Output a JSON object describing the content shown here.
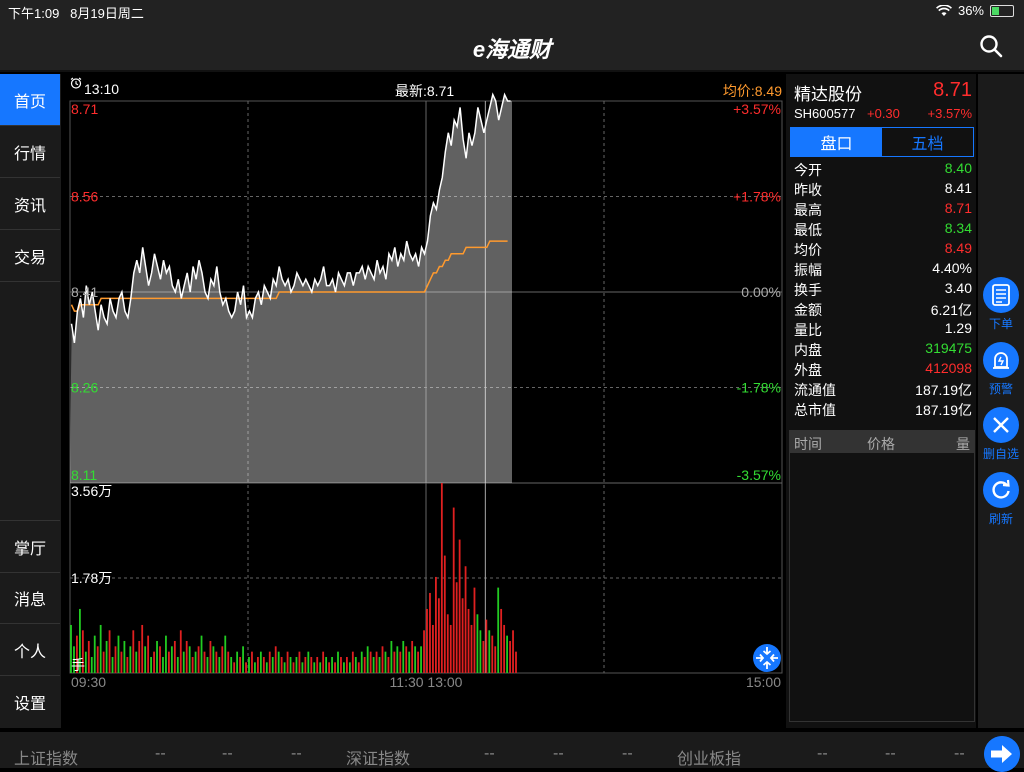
{
  "status": {
    "time": "下午1:09",
    "date": "8月19日周二",
    "battery": "36%",
    "battery_level": 0.36
  },
  "nav": {
    "logo": "e海通财",
    "search_icon": "search-icon"
  },
  "sidebar": {
    "top_items": [
      {
        "label": "首页",
        "active": true
      },
      {
        "label": "行情",
        "active": false
      },
      {
        "label": "资讯",
        "active": false
      },
      {
        "label": "交易",
        "active": false
      }
    ],
    "bottom_items": [
      {
        "label": "掌厅"
      },
      {
        "label": "消息"
      },
      {
        "label": "个人"
      },
      {
        "label": "设置"
      }
    ]
  },
  "chart_header": {
    "time": "13:10",
    "latest": "最新:8.71",
    "avg": "均价:8.49"
  },
  "chart_data": {
    "type": "line",
    "price_axis": {
      "left": [
        "8.71",
        "8.56",
        "8.41",
        "8.26",
        "8.11"
      ],
      "right": [
        "+3.57%",
        "+1.78%",
        "0.00%",
        "-1.78%",
        "-3.57%"
      ],
      "ylim": [
        8.11,
        8.71
      ]
    },
    "volume_axis": {
      "labels": [
        "3.56万",
        "1.78万",
        "手"
      ],
      "ylim": [
        0,
        35600
      ]
    },
    "x_labels": [
      "09:30",
      "11:30 13:00",
      "15:00"
    ],
    "total_minutes": 240,
    "price": [
      8.36,
      8.33,
      8.38,
      8.4,
      8.37,
      8.42,
      8.39,
      8.41,
      8.38,
      8.35,
      8.39,
      8.37,
      8.36,
      8.4,
      8.38,
      8.37,
      8.4,
      8.41,
      8.38,
      8.37,
      8.4,
      8.44,
      8.46,
      8.44,
      8.48,
      8.45,
      8.42,
      8.44,
      8.47,
      8.45,
      8.43,
      8.46,
      8.44,
      8.45,
      8.42,
      8.41,
      8.43,
      8.4,
      8.42,
      8.44,
      8.41,
      8.45,
      8.43,
      8.46,
      8.44,
      8.41,
      8.4,
      8.43,
      8.42,
      8.45,
      8.41,
      8.39,
      8.4,
      8.38,
      8.37,
      8.38,
      8.41,
      8.39,
      8.42,
      8.37,
      8.38,
      8.37,
      8.4,
      8.41,
      8.39,
      8.42,
      8.41,
      8.4,
      8.43,
      8.42,
      8.45,
      8.43,
      8.42,
      8.43,
      8.41,
      8.42,
      8.44,
      8.43,
      8.42,
      8.43,
      8.42,
      8.41,
      8.43,
      8.42,
      8.43,
      8.45,
      8.42,
      8.42,
      8.43,
      8.41,
      8.44,
      8.43,
      8.42,
      8.44,
      8.44,
      8.42,
      8.44,
      8.44,
      8.45,
      8.43,
      8.45,
      8.44,
      8.43,
      8.46,
      8.44,
      8.45,
      8.43,
      8.47,
      8.46,
      8.48,
      8.45,
      8.47,
      8.46,
      8.49,
      8.47,
      8.46,
      8.47,
      8.45,
      8.48,
      8.47,
      8.49,
      8.53,
      8.55,
      8.54,
      8.57,
      8.59,
      8.63,
      8.66,
      8.64,
      8.68,
      8.67,
      8.7,
      8.65,
      8.62,
      8.66,
      8.64,
      8.66,
      8.7,
      8.68,
      8.66,
      8.68,
      8.7,
      8.72,
      8.71,
      8.68,
      8.7,
      8.72,
      8.71,
      8.71
    ],
    "avg": [
      8.39,
      8.38,
      8.38,
      8.39,
      8.39,
      8.39,
      8.39,
      8.39,
      8.39,
      8.39,
      8.4,
      8.4,
      8.4,
      8.4,
      8.4,
      8.4,
      8.4,
      8.4,
      8.4,
      8.4,
      8.4,
      8.4,
      8.4,
      8.4,
      8.4,
      8.4,
      8.4,
      8.4,
      8.4,
      8.4,
      8.4,
      8.4,
      8.4,
      8.4,
      8.4,
      8.4,
      8.4,
      8.4,
      8.4,
      8.4,
      8.4,
      8.4,
      8.4,
      8.4,
      8.4,
      8.4,
      8.4,
      8.4,
      8.4,
      8.4,
      8.4,
      8.4,
      8.4,
      8.4,
      8.4,
      8.4,
      8.4,
      8.4,
      8.4,
      8.4,
      8.4,
      8.4,
      8.4,
      8.4,
      8.4,
      8.4,
      8.4,
      8.4,
      8.4,
      8.4,
      8.41,
      8.41,
      8.41,
      8.41,
      8.41,
      8.41,
      8.41,
      8.41,
      8.41,
      8.41,
      8.41,
      8.41,
      8.41,
      8.41,
      8.41,
      8.41,
      8.41,
      8.41,
      8.41,
      8.41,
      8.41,
      8.41,
      8.41,
      8.41,
      8.41,
      8.41,
      8.41,
      8.41,
      8.41,
      8.41,
      8.41,
      8.41,
      8.41,
      8.41,
      8.41,
      8.41,
      8.41,
      8.41,
      8.41,
      8.41,
      8.41,
      8.41,
      8.41,
      8.41,
      8.41,
      8.41,
      8.41,
      8.41,
      8.41,
      8.41,
      8.42,
      8.43,
      8.44,
      8.44,
      8.45,
      8.45,
      8.46,
      8.46,
      8.47,
      8.47,
      8.47,
      8.47,
      8.47,
      8.48,
      8.48,
      8.48,
      8.48,
      8.48,
      8.48,
      8.48,
      8.48,
      8.49,
      8.49,
      8.49,
      8.49,
      8.49,
      8.49,
      8.49
    ],
    "volume": [
      9000,
      5000,
      7000,
      12000,
      8000,
      4000,
      6000,
      3000,
      7000,
      5000,
      9000,
      4000,
      6000,
      8000,
      3000,
      5000,
      7000,
      4000,
      6000,
      3000,
      5000,
      8000,
      4000,
      6000,
      9000,
      5000,
      7000,
      3000,
      4000,
      6000,
      5000,
      3000,
      7000,
      4000,
      5000,
      6000,
      3000,
      8000,
      4000,
      6000,
      5000,
      3000,
      4000,
      5000,
      7000,
      4000,
      3000,
      6000,
      5000,
      4000,
      3000,
      5000,
      7000,
      4000,
      3000,
      2000,
      4000,
      3000,
      5000,
      2000,
      3000,
      4000,
      2000,
      3000,
      4000,
      3000,
      2000,
      4000,
      3000,
      5000,
      4000,
      3000,
      2000,
      4000,
      3000,
      2000,
      3000,
      4000,
      2000,
      3000,
      4000,
      3000,
      2000,
      3000,
      2000,
      4000,
      3000,
      2000,
      3000,
      2000,
      4000,
      3000,
      2000,
      3000,
      2000,
      4000,
      3000,
      2000,
      4000,
      3000,
      5000,
      4000,
      3000,
      4000,
      3000,
      5000,
      4000,
      3000,
      6000,
      4000,
      5000,
      4000,
      6000,
      5000,
      4000,
      6000,
      5000,
      4000,
      5000,
      8000,
      12000,
      15000,
      9000,
      18000,
      14000,
      35600,
      22000,
      11000,
      9000,
      31000,
      17000,
      25000,
      14000,
      20000,
      12000,
      9000,
      16000,
      11000,
      8000,
      6000,
      10000,
      8000,
      7000,
      5000,
      16000,
      12000,
      9000,
      7000,
      6000,
      8000,
      4000
    ],
    "volume_colors": [
      "g",
      "g",
      "r",
      "g",
      "r",
      "g",
      "r",
      "g",
      "g",
      "r",
      "g",
      "r",
      "g",
      "r",
      "g",
      "r",
      "g",
      "r",
      "g",
      "r",
      "g",
      "r",
      "g",
      "r",
      "r",
      "g",
      "r",
      "g",
      "r",
      "g",
      "r",
      "g",
      "g",
      "r",
      "g",
      "r",
      "g",
      "r",
      "g",
      "r",
      "g",
      "r",
      "g",
      "r",
      "g",
      "r",
      "g",
      "r",
      "g",
      "r",
      "g",
      "r",
      "g",
      "r",
      "g",
      "r",
      "g",
      "r",
      "g",
      "r",
      "g",
      "r",
      "g",
      "r",
      "g",
      "r",
      "g",
      "r",
      "g",
      "r",
      "g",
      "r",
      "g",
      "r",
      "g",
      "r",
      "g",
      "r",
      "g",
      "r",
      "g",
      "r",
      "g",
      "r",
      "g",
      "r",
      "g",
      "r",
      "g",
      "r",
      "g",
      "r",
      "g",
      "r",
      "g",
      "r",
      "g",
      "r",
      "g",
      "r",
      "g",
      "r",
      "g",
      "r",
      "g",
      "r",
      "g",
      "r",
      "g",
      "r",
      "g",
      "r",
      "g",
      "r",
      "g",
      "r",
      "g",
      "r",
      "g",
      "r",
      "r",
      "r",
      "r",
      "r",
      "r",
      "r",
      "r",
      "r",
      "r",
      "r",
      "r",
      "r",
      "r",
      "r",
      "r",
      "r",
      "r",
      "g",
      "g",
      "r",
      "r",
      "g",
      "r",
      "r",
      "g",
      "r",
      "r",
      "g",
      "r",
      "r",
      "r"
    ]
  },
  "quote": {
    "name": "精达股份",
    "price": "8.71",
    "code": "SH600577",
    "change": "+0.30",
    "change_pct": "+3.57%",
    "tabs": [
      "盘口",
      "五档"
    ],
    "rows": [
      {
        "label": "今开",
        "value": "8.40",
        "color": "#33dd33"
      },
      {
        "label": "昨收",
        "value": "8.41",
        "color": "#ffffff"
      },
      {
        "label": "最高",
        "value": "8.71",
        "color": "#ff2d2d"
      },
      {
        "label": "最低",
        "value": "8.34",
        "color": "#33dd33"
      },
      {
        "label": "均价",
        "value": "8.49",
        "color": "#ff2d2d"
      },
      {
        "label": "振幅",
        "value": "4.40%",
        "color": "#ffffff"
      },
      {
        "label": "换手",
        "value": "3.40",
        "color": "#ffffff"
      },
      {
        "label": "金额",
        "value": "6.21亿",
        "color": "#ffffff"
      },
      {
        "label": "量比",
        "value": "1.29",
        "color": "#ffffff"
      },
      {
        "label": "内盘",
        "value": "319475",
        "color": "#33dd33"
      },
      {
        "label": "外盘",
        "value": "412098",
        "color": "#ff2d2d"
      },
      {
        "label": "流通值",
        "value": "187.19亿",
        "color": "#ffffff"
      },
      {
        "label": "总市值",
        "value": "187.19亿",
        "color": "#ffffff"
      }
    ],
    "trade_header": [
      "时间",
      "价格",
      "量"
    ]
  },
  "tools": [
    {
      "label": "下单",
      "icon": "order-icon"
    },
    {
      "label": "预警",
      "icon": "alarm-icon"
    },
    {
      "label": "删自选",
      "icon": "close-icon"
    },
    {
      "label": "刷新",
      "icon": "refresh-icon"
    }
  ],
  "ticker": {
    "items": [
      {
        "name": "上证指数",
        "v1": "--",
        "v2": "--",
        "v3": "--"
      },
      {
        "name": "深证指数",
        "v1": "--",
        "v2": "--",
        "v3": "--"
      },
      {
        "name": "创业板指",
        "v1": "--",
        "v2": "--",
        "v3": "--"
      }
    ]
  }
}
